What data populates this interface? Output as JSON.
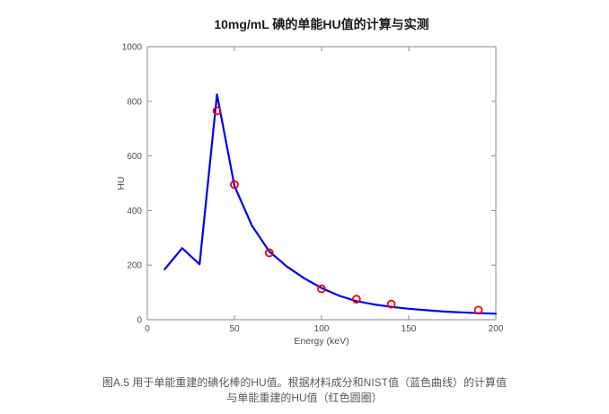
{
  "figure": {
    "title": "10mg/mL 碘的单能HU值的计算与实测",
    "caption_line1": "图A.5 用于单能重建的碘化棒的HU值。根据材料成分和NIST值（蓝色曲线）的计算值",
    "caption_line2": "与单能重建的HU值（红色圆圈）"
  },
  "chart_data": {
    "type": "line",
    "title": "10mg/mL 碘的单能HU值的计算与实测",
    "xlabel": "Energy (keV)",
    "ylabel": "HU",
    "xlim": [
      0,
      200
    ],
    "ylim": [
      0,
      1000
    ],
    "x_ticks": [
      0,
      50,
      100,
      150,
      200
    ],
    "y_ticks": [
      0,
      200,
      400,
      600,
      800,
      1000
    ],
    "grid": false,
    "legend_position": "none",
    "series": [
      {
        "name": "计算值（材料成分和NIST值，蓝色曲线）",
        "type": "line",
        "color": "#0000f0",
        "x": [
          10,
          20,
          30,
          40,
          50,
          60,
          70,
          80,
          90,
          100,
          110,
          120,
          130,
          140,
          150,
          160,
          170,
          180,
          190,
          200
        ],
        "y": [
          185,
          262,
          203,
          825,
          490,
          345,
          250,
          195,
          152,
          116,
          88,
          68,
          56,
          47,
          40,
          35,
          30,
          27,
          24,
          22
        ]
      },
      {
        "name": "单能重建的HU值（红色圆圈）",
        "type": "scatter",
        "color": "#f00000",
        "x": [
          40,
          50,
          70,
          100,
          120,
          140,
          190
        ],
        "y": [
          765,
          495,
          245,
          113,
          75,
          57,
          35
        ]
      }
    ]
  },
  "style": {
    "axis_color": "#8a8a8a",
    "tick_label_color": "#4d4d4d",
    "title_color": "#1a1a1a",
    "caption_color": "#595959",
    "background": "#ffffff"
  }
}
